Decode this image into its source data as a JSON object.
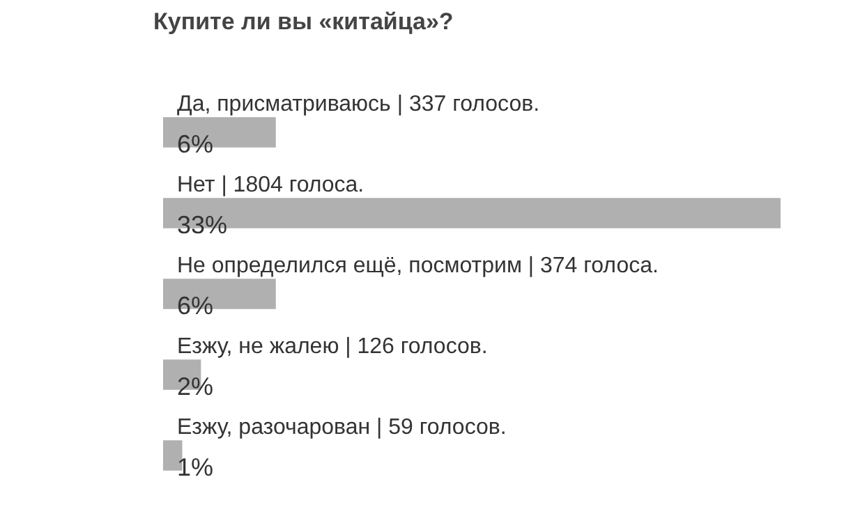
{
  "chart_data": {
    "type": "bar",
    "orientation": "horizontal",
    "title": "Купите ли вы «китайца»?",
    "categories": [
      "Да, присматриваюсь | 337 голосов.",
      "Нет | 1804 голоса.",
      "Не определился ещё, посмотрим | 374 голоса.",
      "Езжу, не жалею | 126 голосов.",
      "Езжу, разочарован | 59 голосов."
    ],
    "values": [
      6,
      33,
      6,
      2,
      1
    ],
    "value_labels": [
      "6%",
      "33%",
      "6%",
      "2%",
      "1%"
    ],
    "color": "#b0b0b0",
    "tick_labels": false,
    "legend": false
  }
}
